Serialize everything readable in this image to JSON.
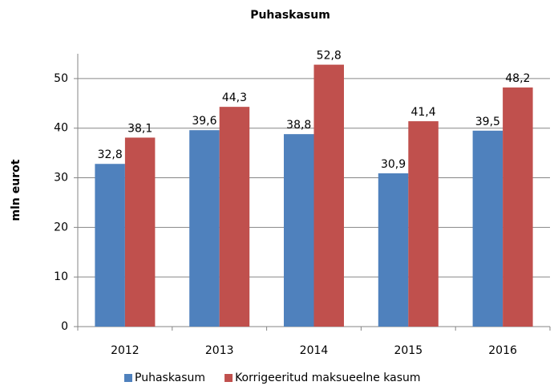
{
  "chart_data": {
    "type": "bar",
    "title": "Puhaskasum",
    "y_label": "mln eurot",
    "categories": [
      "2012",
      "2013",
      "2014",
      "2015",
      "2016"
    ],
    "series": [
      {
        "name": "Puhaskasum",
        "color": "#4f81bd",
        "values": [
          32.8,
          39.6,
          38.8,
          30.9,
          39.5
        ],
        "value_labels": [
          "32,8",
          "39,6",
          "38,8",
          "30,9",
          "39,5"
        ]
      },
      {
        "name": "Korrigeeritud maksueelne kasum",
        "color": "#c0504d",
        "values": [
          38.1,
          44.3,
          52.8,
          41.4,
          48.2
        ],
        "value_labels": [
          "38,1",
          "44,3",
          "52,8",
          "41,4",
          "48,2"
        ]
      }
    ],
    "ylim": [
      0,
      55
    ],
    "yticks": [
      0,
      10,
      20,
      30,
      40,
      50
    ],
    "grid": true,
    "legend": "bottom"
  }
}
